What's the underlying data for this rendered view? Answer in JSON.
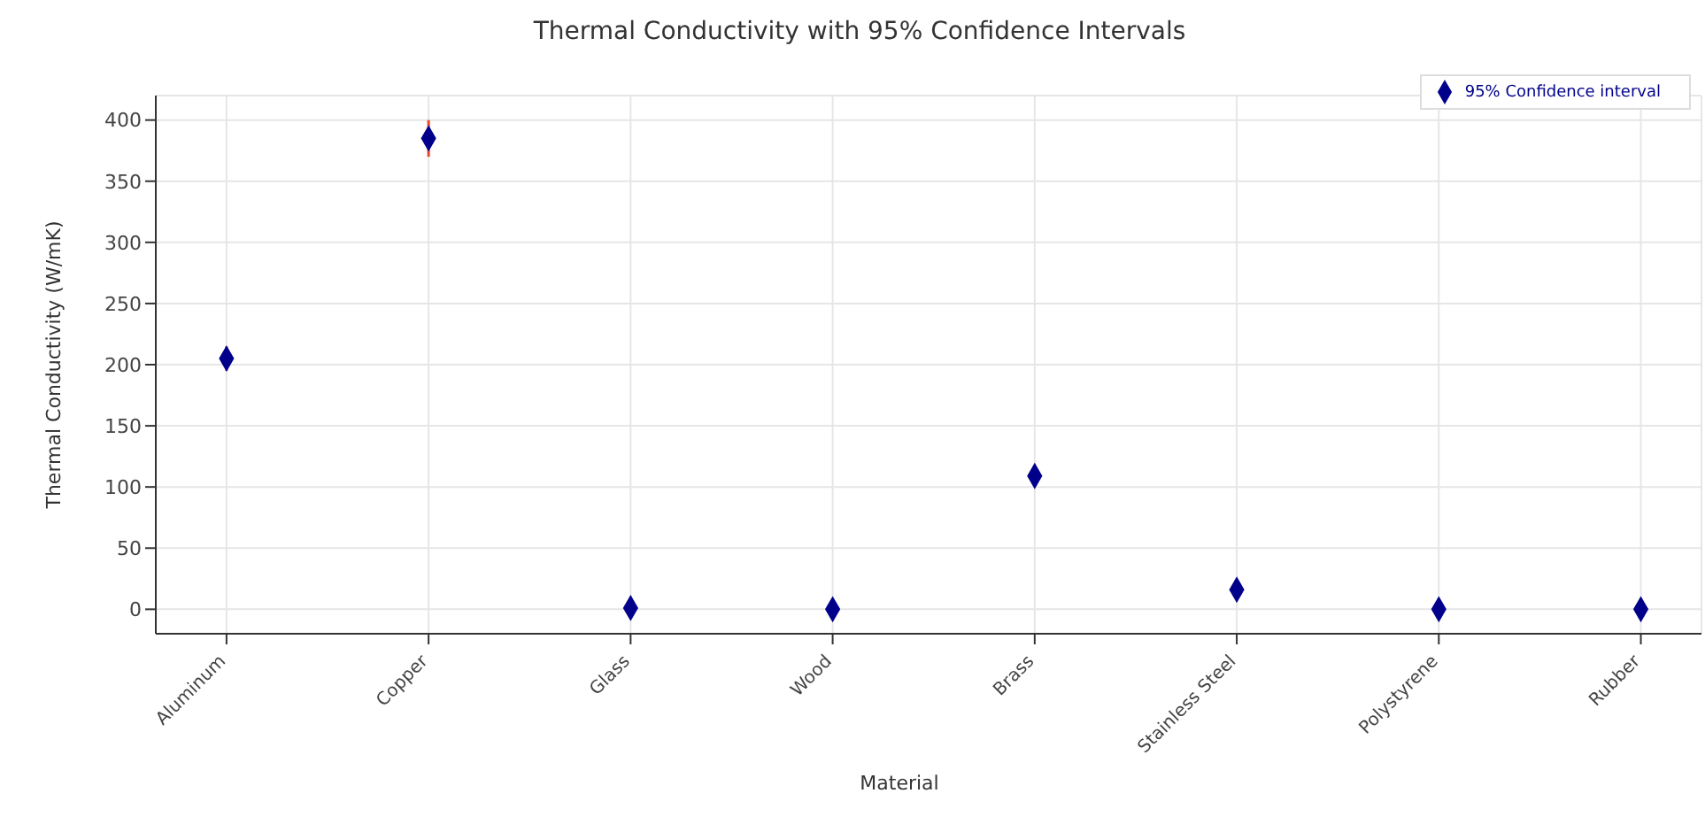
{
  "chart_data": {
    "type": "scatter",
    "title": "Thermal Conductivity with 95% Confidence Intervals",
    "xlabel": "Material",
    "ylabel": "Thermal Conductivity (W/mK)",
    "categories": [
      "Aluminum",
      "Copper",
      "Glass",
      "Wood",
      "Brass",
      "Stainless Steel",
      "Polystyrene",
      "Rubber"
    ],
    "series": [
      {
        "name": "95% Confidence interval",
        "color": "#00008b",
        "values": [
          205,
          385,
          1,
          0,
          109,
          16,
          0,
          0
        ],
        "errors": [
          10,
          15,
          null,
          null,
          null,
          null,
          null,
          null
        ]
      }
    ],
    "ylim": [
      -20,
      420
    ],
    "yticks": [
      0,
      50,
      100,
      150,
      200,
      250,
      300,
      350,
      400
    ],
    "grid": true,
    "legend": "top right",
    "marker": "diamond"
  }
}
